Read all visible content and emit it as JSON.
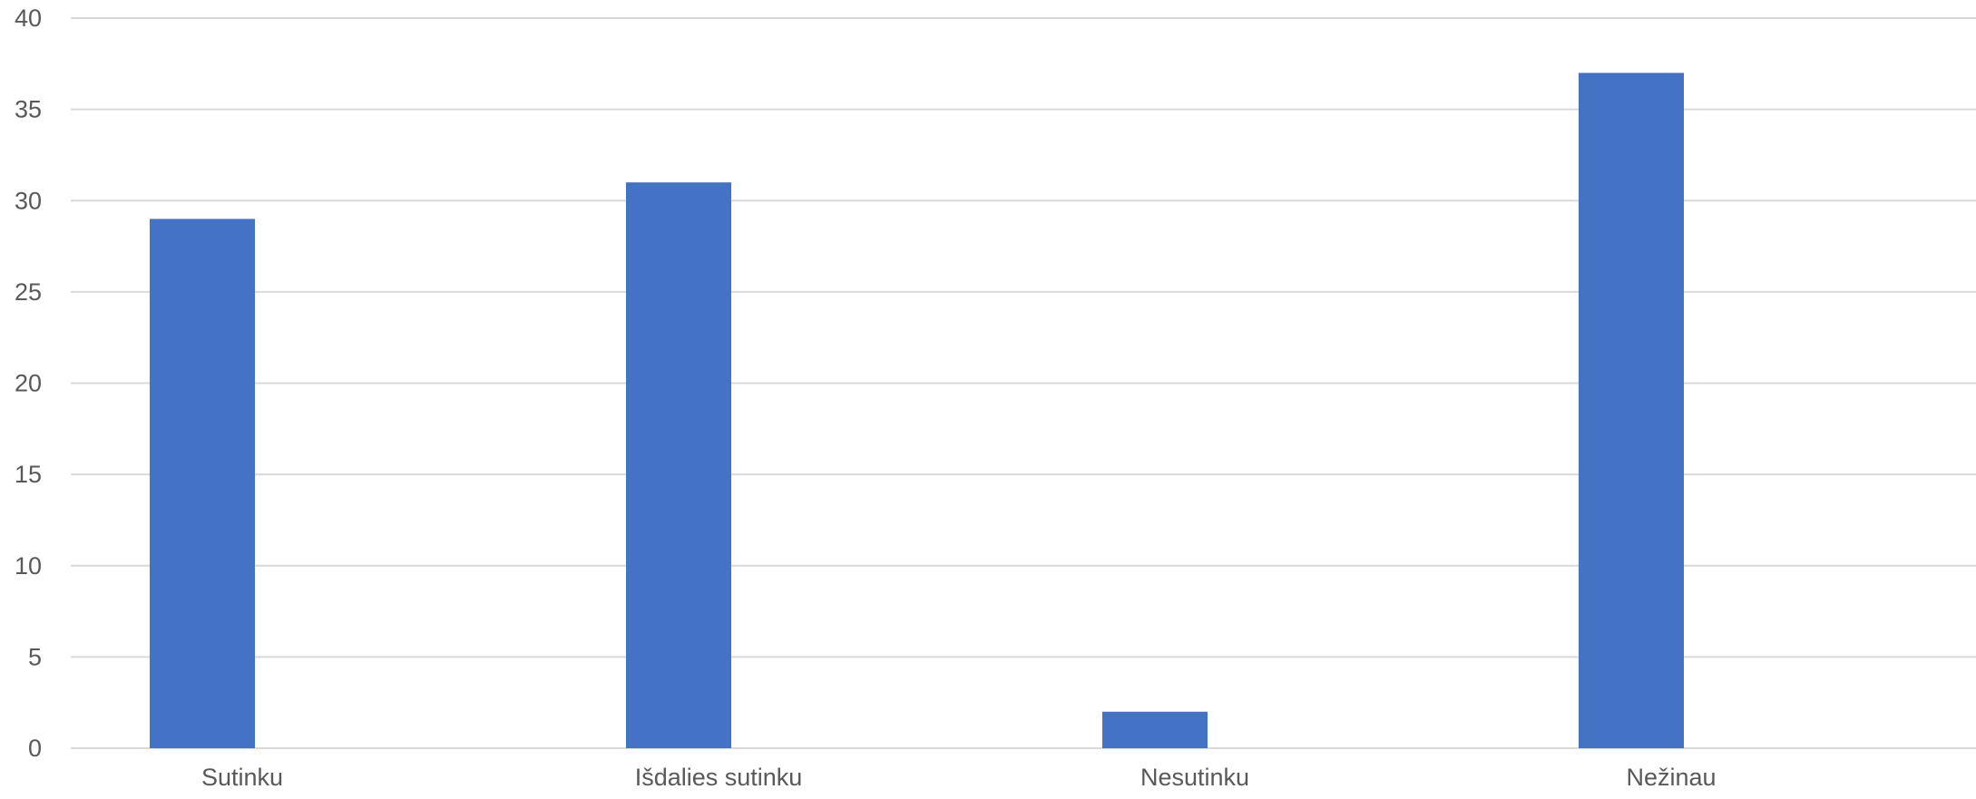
{
  "chart_data": {
    "type": "bar",
    "categories": [
      "Sutinku",
      "Išdalies sutinku",
      "Nesutinku",
      "Nežinau"
    ],
    "values": [
      29,
      31,
      2,
      37
    ],
    "ylim": [
      0,
      40
    ],
    "yticks": [
      0,
      5,
      10,
      15,
      20,
      25,
      30,
      35,
      40
    ],
    "grid": true,
    "legend": "none",
    "colors": {
      "bar": "#4472c4",
      "grid": "#d9d9d9",
      "text": "#595959"
    }
  }
}
